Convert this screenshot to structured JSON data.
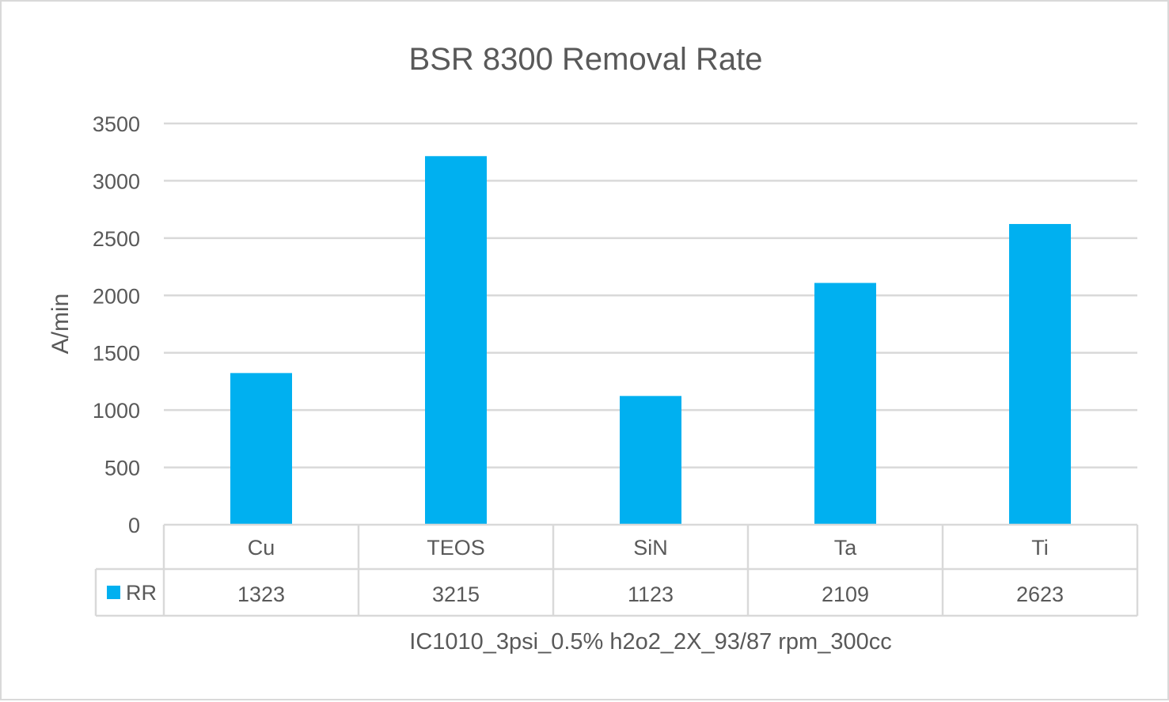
{
  "chart_data": {
    "type": "bar",
    "title": "BSR 8300 Removal Rate",
    "ylabel": "A/min",
    "xlabel": "IC1010_3psi_0.5% h2o2_2X_93/87 rpm_300cc",
    "categories": [
      "Cu",
      "TEOS",
      "SiN",
      "Ta",
      "Ti"
    ],
    "series": [
      {
        "name": "RR",
        "values": [
          1323,
          3215,
          1123,
          2109,
          2623
        ],
        "color": "#00b0f0"
      }
    ],
    "ylim": [
      0,
      3500
    ],
    "yticks": [
      0,
      500,
      1000,
      1500,
      2000,
      2500,
      3000,
      3500
    ],
    "grid": true,
    "legend": "data-table",
    "data_table": true
  }
}
